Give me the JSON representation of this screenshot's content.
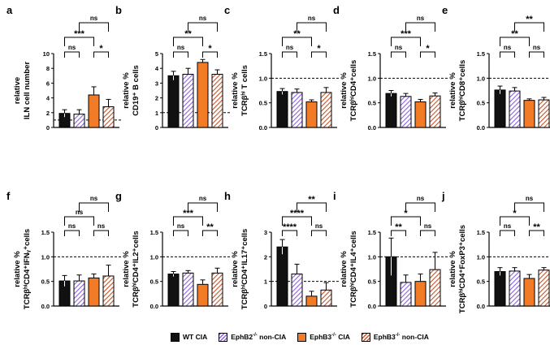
{
  "colors": {
    "wt": "#111111",
    "ephb2": "#8e61e0",
    "ephb3": "#f27b27",
    "ephb3non": "#c5542a",
    "ephb2_bg": "#ffffff",
    "ephb3non_bg": "#ffffff"
  },
  "legend": [
    {
      "key": "wt",
      "pre": "WT CIA",
      "sup": "",
      "post": ""
    },
    {
      "key": "ephb2",
      "pre": "EphB2",
      "sup": "-/-",
      "post": " non-CIA"
    },
    {
      "key": "ephb3",
      "pre": "EphB3",
      "sup": "-/-",
      "post": " CIA"
    },
    {
      "key": "ephb3non",
      "pre": "EphB3",
      "sup": "-/-",
      "post": " non-CIA"
    }
  ],
  "chart_data": [
    {
      "panel": "a",
      "type": "bar",
      "ylabel_lines": [
        "relative",
        "ILN cell number"
      ],
      "ylim": [
        0,
        10
      ],
      "ticks": [
        0,
        2,
        4,
        6,
        8,
        10
      ],
      "dashed": 1.0,
      "values": [
        1.9,
        1.8,
        4.4,
        2.8
      ],
      "errors": [
        0.5,
        0.6,
        1.1,
        1.0
      ],
      "brackets": [
        {
          "i": 0,
          "j": 1,
          "level": 0,
          "label": "ns"
        },
        {
          "i": 2,
          "j": 3,
          "level": 0,
          "label": "*"
        },
        {
          "i": 0,
          "j": 2,
          "level": 1,
          "label": "***"
        },
        {
          "i": 1,
          "j": 3,
          "level": 2,
          "label": "ns"
        }
      ]
    },
    {
      "panel": "b",
      "type": "bar",
      "ylabel_lines": [
        "relative %",
        "CD19⁺ B cells"
      ],
      "ylim": [
        0,
        5
      ],
      "ticks": [
        0,
        1,
        2,
        3,
        4,
        5
      ],
      "dashed": 1.0,
      "values": [
        3.5,
        3.6,
        4.4,
        3.6
      ],
      "errors": [
        0.3,
        0.4,
        0.2,
        0.3
      ],
      "brackets": [
        {
          "i": 0,
          "j": 1,
          "level": 0,
          "label": "ns"
        },
        {
          "i": 2,
          "j": 3,
          "level": 0,
          "label": "*"
        },
        {
          "i": 0,
          "j": 2,
          "level": 1,
          "label": "**"
        },
        {
          "i": 1,
          "j": 3,
          "level": 2,
          "label": "ns"
        }
      ]
    },
    {
      "panel": "c",
      "type": "bar",
      "ylabel_lines": [
        "relative %",
        "TCRβʰⁱ T cells"
      ],
      "ylim": [
        0,
        1.5
      ],
      "ticks": [
        0,
        0.5,
        1.0,
        1.5
      ],
      "dashed": 1.0,
      "values": [
        0.73,
        0.71,
        0.52,
        0.71
      ],
      "errors": [
        0.06,
        0.07,
        0.04,
        0.1
      ],
      "brackets": [
        {
          "i": 0,
          "j": 1,
          "level": 0,
          "label": "ns"
        },
        {
          "i": 2,
          "j": 3,
          "level": 0,
          "label": "*"
        },
        {
          "i": 0,
          "j": 2,
          "level": 1,
          "label": "**"
        },
        {
          "i": 1,
          "j": 3,
          "level": 2,
          "label": "ns"
        }
      ]
    },
    {
      "panel": "d",
      "type": "bar",
      "ylabel_lines": [
        "relative %",
        "TCRβʰⁱCD4⁺cells"
      ],
      "ylim": [
        0,
        1.5
      ],
      "ticks": [
        0,
        0.5,
        1.0,
        1.5
      ],
      "dashed": 1.0,
      "values": [
        0.69,
        0.63,
        0.52,
        0.64
      ],
      "errors": [
        0.06,
        0.06,
        0.05,
        0.06
      ],
      "brackets": [
        {
          "i": 0,
          "j": 1,
          "level": 0,
          "label": "ns"
        },
        {
          "i": 2,
          "j": 3,
          "level": 0,
          "label": "*"
        },
        {
          "i": 0,
          "j": 2,
          "level": 1,
          "label": "***"
        },
        {
          "i": 1,
          "j": 3,
          "level": 2,
          "label": "ns"
        }
      ]
    },
    {
      "panel": "e",
      "type": "bar",
      "ylabel_lines": [
        "relative %",
        "TCRβʰⁱCD8⁺cells"
      ],
      "ylim": [
        0,
        1.5
      ],
      "ticks": [
        0,
        0.5,
        1.0,
        1.5
      ],
      "dashed": 1.0,
      "values": [
        0.76,
        0.74,
        0.55,
        0.56
      ],
      "errors": [
        0.08,
        0.07,
        0.03,
        0.05
      ],
      "brackets": [
        {
          "i": 0,
          "j": 1,
          "level": 0,
          "label": "ns"
        },
        {
          "i": 2,
          "j": 3,
          "level": 0,
          "label": "ns"
        },
        {
          "i": 0,
          "j": 2,
          "level": 1,
          "label": "**"
        },
        {
          "i": 1,
          "j": 3,
          "level": 2,
          "label": "**"
        }
      ]
    },
    {
      "panel": "f",
      "type": "bar",
      "ylabel_lines": [
        "relative %",
        "TCRβʰⁱCD4⁺IFNᵧ⁺cells"
      ],
      "ylim": [
        0,
        1.5
      ],
      "ticks": [
        0,
        0.5,
        1.0,
        1.5
      ],
      "dashed": 1.0,
      "values": [
        0.51,
        0.51,
        0.57,
        0.61
      ],
      "errors": [
        0.11,
        0.12,
        0.08,
        0.22
      ],
      "brackets": [
        {
          "i": 0,
          "j": 1,
          "level": 0,
          "label": "ns"
        },
        {
          "i": 2,
          "j": 3,
          "level": 0,
          "label": "ns"
        },
        {
          "i": 0,
          "j": 2,
          "level": 1,
          "label": "ns"
        },
        {
          "i": 1,
          "j": 3,
          "level": 2,
          "label": "ns"
        }
      ]
    },
    {
      "panel": "g",
      "type": "bar",
      "ylabel_lines": [
        "relative %",
        "TCRβʰⁱCD4⁺IL2⁺cells"
      ],
      "ylim": [
        0,
        1.5
      ],
      "ticks": [
        0,
        0.5,
        1.0,
        1.5
      ],
      "dashed": 1.0,
      "values": [
        0.65,
        0.67,
        0.44,
        0.67
      ],
      "errors": [
        0.05,
        0.05,
        0.09,
        0.1
      ],
      "brackets": [
        {
          "i": 0,
          "j": 1,
          "level": 0,
          "label": "ns"
        },
        {
          "i": 2,
          "j": 3,
          "level": 0,
          "label": "**"
        },
        {
          "i": 0,
          "j": 2,
          "level": 1,
          "label": "***"
        },
        {
          "i": 1,
          "j": 3,
          "level": 2,
          "label": "ns"
        }
      ]
    },
    {
      "panel": "h",
      "type": "bar",
      "ylabel_lines": [
        "relative %",
        "TCRβʰⁱCD4⁺IL17⁺cells"
      ],
      "ylim": [
        0,
        3
      ],
      "ticks": [
        0,
        1,
        2,
        3
      ],
      "dashed": 1.0,
      "values": [
        2.4,
        1.3,
        0.4,
        0.65
      ],
      "errors": [
        0.3,
        0.4,
        0.2,
        0.3
      ],
      "brackets": [
        {
          "i": 0,
          "j": 1,
          "level": 0,
          "label": "****"
        },
        {
          "i": 2,
          "j": 3,
          "level": 0,
          "label": "ns"
        },
        {
          "i": 0,
          "j": 2,
          "level": 1,
          "label": "****"
        },
        {
          "i": 1,
          "j": 3,
          "level": 2,
          "label": "**"
        }
      ]
    },
    {
      "panel": "i",
      "type": "bar",
      "ylabel_lines": [
        "relative %",
        "TCRβʰⁱCD4⁺IL4⁺cells"
      ],
      "ylim": [
        0,
        1.5
      ],
      "ticks": [
        0,
        0.5,
        1.0,
        1.5
      ],
      "dashed": 1.0,
      "values": [
        1.0,
        0.48,
        0.5,
        0.74
      ],
      "errors": [
        0.38,
        0.15,
        0.15,
        0.35
      ],
      "brackets": [
        {
          "i": 0,
          "j": 1,
          "level": 0,
          "label": "**"
        },
        {
          "i": 2,
          "j": 3,
          "level": 0,
          "label": "ns"
        },
        {
          "i": 0,
          "j": 2,
          "level": 1,
          "label": "*"
        },
        {
          "i": 1,
          "j": 3,
          "level": 2,
          "label": "ns"
        }
      ]
    },
    {
      "panel": "j",
      "type": "bar",
      "ylabel_lines": [
        "relative %",
        "TCRβʰⁱCD4⁺FoxP3⁺cells"
      ],
      "ylim": [
        0,
        1.5
      ],
      "ticks": [
        0,
        0.5,
        1.0,
        1.5
      ],
      "dashed": 1.0,
      "values": [
        0.7,
        0.71,
        0.56,
        0.73
      ],
      "errors": [
        0.08,
        0.07,
        0.08,
        0.05
      ],
      "brackets": [
        {
          "i": 0,
          "j": 1,
          "level": 0,
          "label": "ns"
        },
        {
          "i": 2,
          "j": 3,
          "level": 0,
          "label": "**"
        },
        {
          "i": 0,
          "j": 2,
          "level": 1,
          "label": "*"
        },
        {
          "i": 1,
          "j": 3,
          "level": 2,
          "label": "ns"
        }
      ]
    }
  ]
}
